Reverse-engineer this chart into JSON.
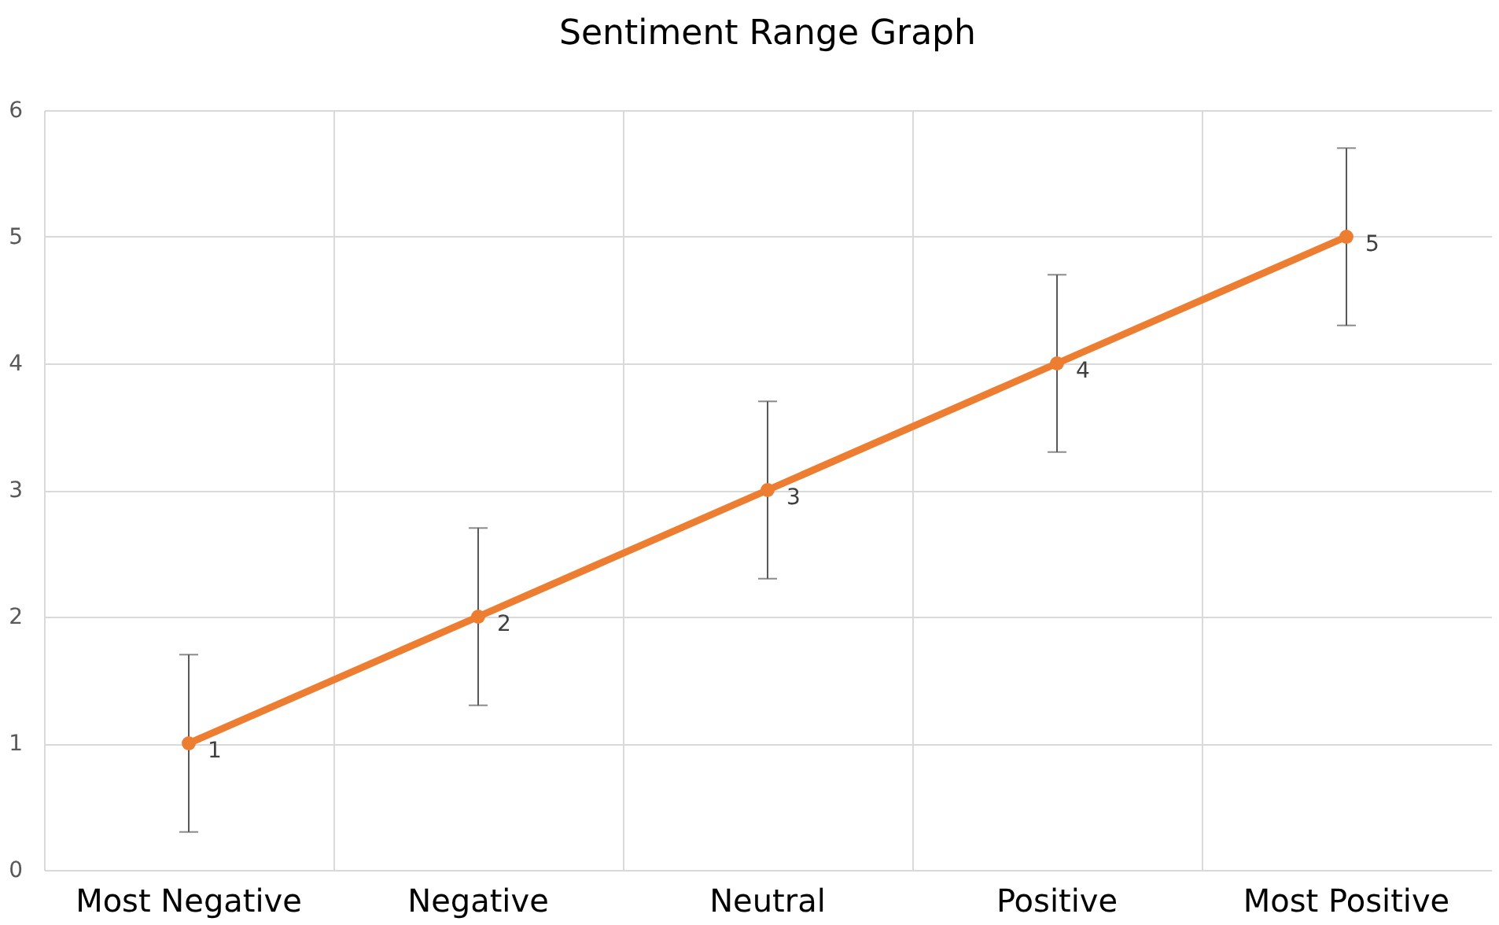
{
  "chart_data": {
    "type": "line",
    "title": "Sentiment Range Graph",
    "categories": [
      "Most Negative",
      "Negative",
      "Neutral",
      "Positive",
      "Most Positive"
    ],
    "color": "#ed7d31",
    "values": [
      1,
      2,
      3,
      4,
      5
    ],
    "errors": [
      0.7,
      0.7,
      0.7,
      0.7,
      0.7
    ],
    "ylim": [
      0,
      6
    ],
    "yticks": [
      0,
      1,
      2,
      3,
      4,
      5,
      6
    ],
    "grid": true,
    "marker": "circle",
    "line_style": "solid",
    "data_labels": true
  }
}
